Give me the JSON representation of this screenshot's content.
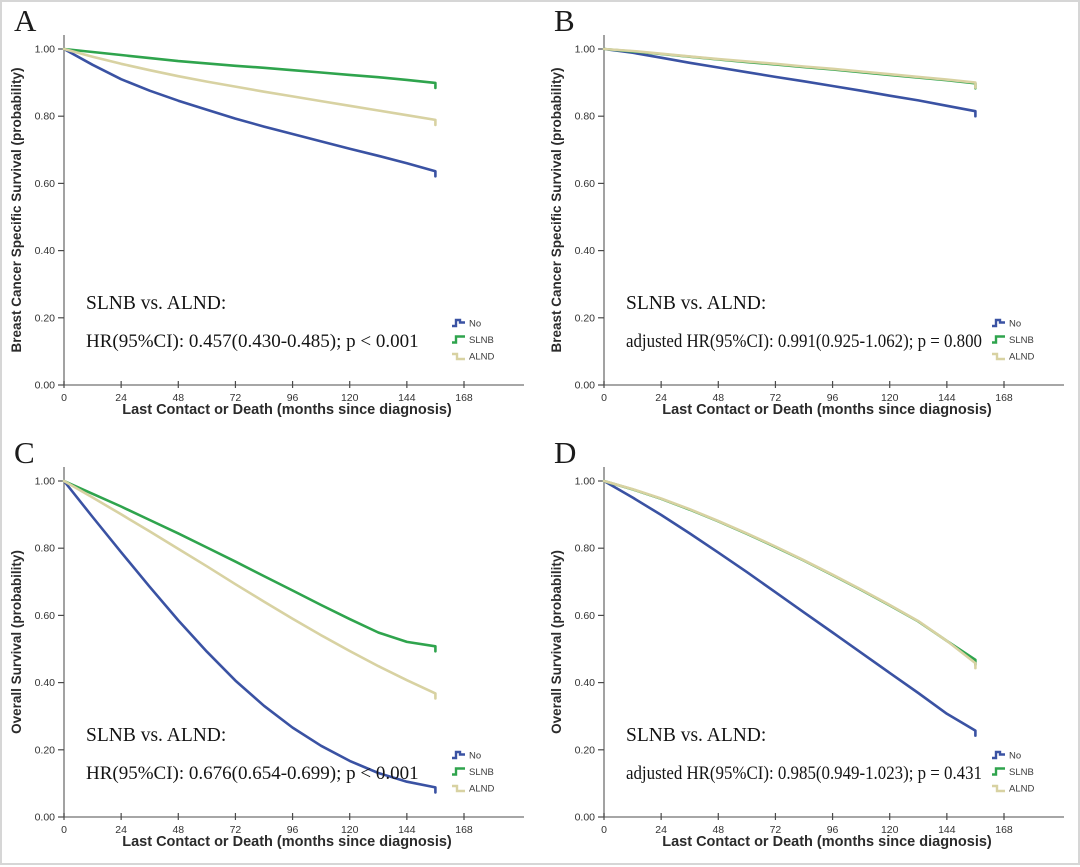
{
  "figure": {
    "background": "#ffffff",
    "border_color": "#d6d6d6",
    "colors": {
      "no": "#3a52a3",
      "slnb": "#2fa44d",
      "alnd": "#d8d2a2",
      "axis": "#707070",
      "text": "#2b2b2b"
    }
  },
  "chart_data": [
    {
      "type": "line",
      "panel_label": "A",
      "xlabel": "Last Contact or Death (months since diagnosis)",
      "ylabel": "Breast Cancer Specific Survival (probability)",
      "xlim": [
        0,
        193
      ],
      "ylim": [
        0,
        1.05
      ],
      "xticks": [
        0,
        24,
        48,
        72,
        96,
        120,
        144,
        168
      ],
      "yticks": [
        "0.00",
        "0.20",
        "0.40",
        "0.60",
        "0.80",
        "1.00"
      ],
      "grid": false,
      "legend_position": "lower-right",
      "legend": [
        "No",
        "SLNB",
        "ALND"
      ],
      "annotation": [
        "SLNB vs. ALND:",
        "HR(95%CI): 0.457(0.430-0.485); p < 0.001"
      ],
      "x": [
        0,
        12,
        24,
        36,
        48,
        60,
        72,
        84,
        96,
        108,
        120,
        132,
        144,
        156
      ],
      "series": [
        {
          "name": "No",
          "color": "#3a52a3",
          "values": [
            1.0,
            0.953,
            0.91,
            0.876,
            0.846,
            0.819,
            0.793,
            0.769,
            0.747,
            0.725,
            0.703,
            0.682,
            0.66,
            0.636
          ]
        },
        {
          "name": "SLNB",
          "color": "#2fa44d",
          "values": [
            1.0,
            0.991,
            0.982,
            0.973,
            0.964,
            0.957,
            0.95,
            0.944,
            0.937,
            0.93,
            0.923,
            0.916,
            0.908,
            0.899
          ]
        },
        {
          "name": "ALND",
          "color": "#d8d2a2",
          "values": [
            1.0,
            0.977,
            0.956,
            0.937,
            0.919,
            0.903,
            0.888,
            0.873,
            0.859,
            0.845,
            0.831,
            0.817,
            0.803,
            0.789
          ]
        }
      ]
    },
    {
      "type": "line",
      "panel_label": "B",
      "xlabel": "Last Contact or Death (months since diagnosis)",
      "ylabel": "Breast Cancer Specific Survival (probability)",
      "xlim": [
        0,
        193
      ],
      "ylim": [
        0,
        1.05
      ],
      "xticks": [
        0,
        24,
        48,
        72,
        96,
        120,
        144,
        168
      ],
      "yticks": [
        "0.00",
        "0.20",
        "0.40",
        "0.60",
        "0.80",
        "1.00"
      ],
      "grid": false,
      "legend_position": "lower-right",
      "legend": [
        "No",
        "SLNB",
        "ALND"
      ],
      "annotation": [
        "SLNB vs. ALND:",
        "adjusted HR(95%CI): 0.991(0.925-1.062); p = 0.800"
      ],
      "x": [
        0,
        12,
        24,
        36,
        48,
        60,
        72,
        84,
        96,
        108,
        120,
        132,
        144,
        156
      ],
      "series": [
        {
          "name": "No",
          "color": "#3a52a3",
          "values": [
            1.0,
            0.989,
            0.974,
            0.959,
            0.945,
            0.931,
            0.917,
            0.904,
            0.89,
            0.876,
            0.861,
            0.847,
            0.831,
            0.815
          ]
        },
        {
          "name": "SLNB",
          "color": "#2fa44d",
          "values": [
            1.0,
            0.993,
            0.985,
            0.977,
            0.969,
            0.961,
            0.954,
            0.946,
            0.939,
            0.931,
            0.923,
            0.915,
            0.907,
            0.898
          ]
        },
        {
          "name": "ALND",
          "color": "#d8d2a2",
          "values": [
            1.0,
            0.994,
            0.986,
            0.978,
            0.97,
            0.963,
            0.956,
            0.948,
            0.941,
            0.933,
            0.925,
            0.917,
            0.909,
            0.9
          ]
        }
      ]
    },
    {
      "type": "line",
      "panel_label": "C",
      "xlabel": "Last Contact or Death (months since diagnosis)",
      "ylabel": "Overall Survival (probability)",
      "xlim": [
        0,
        193
      ],
      "ylim": [
        0,
        1.05
      ],
      "xticks": [
        0,
        24,
        48,
        72,
        96,
        120,
        144,
        168
      ],
      "yticks": [
        "0.00",
        "0.20",
        "0.40",
        "0.60",
        "0.80",
        "1.00"
      ],
      "grid": false,
      "legend_position": "lower-right",
      "legend": [
        "No",
        "SLNB",
        "ALND"
      ],
      "annotation": [
        "SLNB vs. ALND:",
        "HR(95%CI): 0.676(0.654-0.699); p < 0.001"
      ],
      "x": [
        0,
        12,
        24,
        36,
        48,
        60,
        72,
        84,
        96,
        108,
        120,
        132,
        144,
        156
      ],
      "series": [
        {
          "name": "No",
          "color": "#3a52a3",
          "values": [
            1.0,
            0.893,
            0.788,
            0.685,
            0.585,
            0.492,
            0.406,
            0.331,
            0.266,
            0.212,
            0.167,
            0.131,
            0.105,
            0.088
          ]
        },
        {
          "name": "SLNB",
          "color": "#2fa44d",
          "values": [
            1.0,
            0.962,
            0.924,
            0.884,
            0.844,
            0.802,
            0.76,
            0.717,
            0.674,
            0.631,
            0.589,
            0.549,
            0.521,
            0.508
          ]
        },
        {
          "name": "ALND",
          "color": "#d8d2a2",
          "values": [
            1.0,
            0.951,
            0.901,
            0.85,
            0.798,
            0.746,
            0.693,
            0.641,
            0.59,
            0.541,
            0.494,
            0.449,
            0.407,
            0.368
          ]
        }
      ]
    },
    {
      "type": "line",
      "panel_label": "D",
      "xlabel": "Last Contact or Death (months since diagnosis)",
      "ylabel": "Overall Survival (probability)",
      "xlim": [
        0,
        193
      ],
      "ylim": [
        0,
        1.05
      ],
      "xticks": [
        0,
        24,
        48,
        72,
        96,
        120,
        144,
        168
      ],
      "yticks": [
        "0.00",
        "0.20",
        "0.40",
        "0.60",
        "0.80",
        "1.00"
      ],
      "grid": false,
      "legend_position": "lower-right",
      "legend": [
        "No",
        "SLNB",
        "ALND"
      ],
      "annotation": [
        "SLNB vs. ALND:",
        "adjusted HR(95%CI): 0.985(0.949-1.023); p = 0.431"
      ],
      "x": [
        0,
        12,
        24,
        36,
        48,
        60,
        72,
        84,
        96,
        108,
        120,
        132,
        144,
        156
      ],
      "series": [
        {
          "name": "No",
          "color": "#3a52a3",
          "values": [
            1.0,
            0.951,
            0.899,
            0.844,
            0.787,
            0.729,
            0.669,
            0.609,
            0.549,
            0.489,
            0.429,
            0.369,
            0.307,
            0.257
          ]
        },
        {
          "name": "SLNB",
          "color": "#2fa44d",
          "values": [
            1.0,
            0.975,
            0.947,
            0.915,
            0.88,
            0.843,
            0.804,
            0.763,
            0.72,
            0.676,
            0.63,
            0.582,
            0.524,
            0.468
          ]
        },
        {
          "name": "ALND",
          "color": "#d8d2a2",
          "values": [
            1.0,
            0.976,
            0.948,
            0.916,
            0.881,
            0.844,
            0.805,
            0.764,
            0.721,
            0.677,
            0.631,
            0.583,
            0.524,
            0.458
          ]
        }
      ]
    }
  ]
}
